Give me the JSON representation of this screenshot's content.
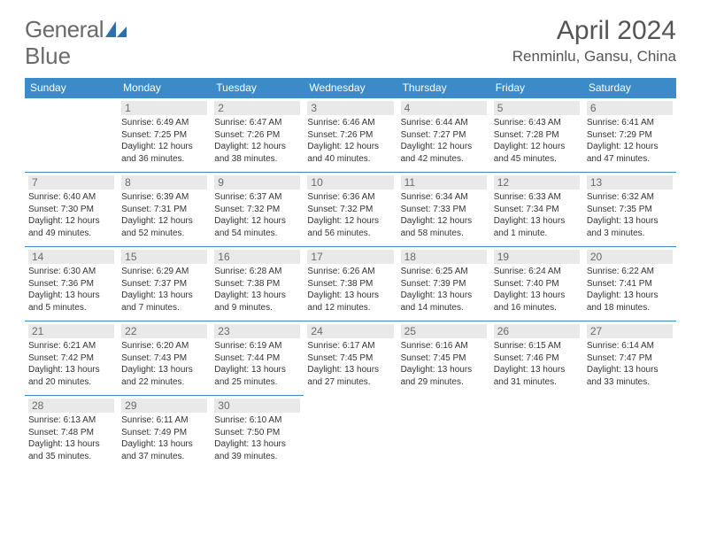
{
  "logo": {
    "word1": "General",
    "word2": "Blue"
  },
  "title": "April 2024",
  "location": "Renminlu, Gansu, China",
  "colors": {
    "header_bg": "#3b8bc9",
    "header_fg": "#ffffff",
    "daynum_bg": "#e9e9e9",
    "daynum_fg": "#6a6a6a",
    "border": "#3b8bc9",
    "text": "#333333",
    "title_fg": "#555555"
  },
  "weekdays": [
    "Sunday",
    "Monday",
    "Tuesday",
    "Wednesday",
    "Thursday",
    "Friday",
    "Saturday"
  ],
  "weeks": [
    [
      {
        "empty": true
      },
      {
        "n": "1",
        "sr": "Sunrise: 6:49 AM",
        "ss": "Sunset: 7:25 PM",
        "d1": "Daylight: 12 hours",
        "d2": "and 36 minutes."
      },
      {
        "n": "2",
        "sr": "Sunrise: 6:47 AM",
        "ss": "Sunset: 7:26 PM",
        "d1": "Daylight: 12 hours",
        "d2": "and 38 minutes."
      },
      {
        "n": "3",
        "sr": "Sunrise: 6:46 AM",
        "ss": "Sunset: 7:26 PM",
        "d1": "Daylight: 12 hours",
        "d2": "and 40 minutes."
      },
      {
        "n": "4",
        "sr": "Sunrise: 6:44 AM",
        "ss": "Sunset: 7:27 PM",
        "d1": "Daylight: 12 hours",
        "d2": "and 42 minutes."
      },
      {
        "n": "5",
        "sr": "Sunrise: 6:43 AM",
        "ss": "Sunset: 7:28 PM",
        "d1": "Daylight: 12 hours",
        "d2": "and 45 minutes."
      },
      {
        "n": "6",
        "sr": "Sunrise: 6:41 AM",
        "ss": "Sunset: 7:29 PM",
        "d1": "Daylight: 12 hours",
        "d2": "and 47 minutes."
      }
    ],
    [
      {
        "n": "7",
        "sr": "Sunrise: 6:40 AM",
        "ss": "Sunset: 7:30 PM",
        "d1": "Daylight: 12 hours",
        "d2": "and 49 minutes."
      },
      {
        "n": "8",
        "sr": "Sunrise: 6:39 AM",
        "ss": "Sunset: 7:31 PM",
        "d1": "Daylight: 12 hours",
        "d2": "and 52 minutes."
      },
      {
        "n": "9",
        "sr": "Sunrise: 6:37 AM",
        "ss": "Sunset: 7:32 PM",
        "d1": "Daylight: 12 hours",
        "d2": "and 54 minutes."
      },
      {
        "n": "10",
        "sr": "Sunrise: 6:36 AM",
        "ss": "Sunset: 7:32 PM",
        "d1": "Daylight: 12 hours",
        "d2": "and 56 minutes."
      },
      {
        "n": "11",
        "sr": "Sunrise: 6:34 AM",
        "ss": "Sunset: 7:33 PM",
        "d1": "Daylight: 12 hours",
        "d2": "and 58 minutes."
      },
      {
        "n": "12",
        "sr": "Sunrise: 6:33 AM",
        "ss": "Sunset: 7:34 PM",
        "d1": "Daylight: 13 hours",
        "d2": "and 1 minute."
      },
      {
        "n": "13",
        "sr": "Sunrise: 6:32 AM",
        "ss": "Sunset: 7:35 PM",
        "d1": "Daylight: 13 hours",
        "d2": "and 3 minutes."
      }
    ],
    [
      {
        "n": "14",
        "sr": "Sunrise: 6:30 AM",
        "ss": "Sunset: 7:36 PM",
        "d1": "Daylight: 13 hours",
        "d2": "and 5 minutes."
      },
      {
        "n": "15",
        "sr": "Sunrise: 6:29 AM",
        "ss": "Sunset: 7:37 PM",
        "d1": "Daylight: 13 hours",
        "d2": "and 7 minutes."
      },
      {
        "n": "16",
        "sr": "Sunrise: 6:28 AM",
        "ss": "Sunset: 7:38 PM",
        "d1": "Daylight: 13 hours",
        "d2": "and 9 minutes."
      },
      {
        "n": "17",
        "sr": "Sunrise: 6:26 AM",
        "ss": "Sunset: 7:38 PM",
        "d1": "Daylight: 13 hours",
        "d2": "and 12 minutes."
      },
      {
        "n": "18",
        "sr": "Sunrise: 6:25 AM",
        "ss": "Sunset: 7:39 PM",
        "d1": "Daylight: 13 hours",
        "d2": "and 14 minutes."
      },
      {
        "n": "19",
        "sr": "Sunrise: 6:24 AM",
        "ss": "Sunset: 7:40 PM",
        "d1": "Daylight: 13 hours",
        "d2": "and 16 minutes."
      },
      {
        "n": "20",
        "sr": "Sunrise: 6:22 AM",
        "ss": "Sunset: 7:41 PM",
        "d1": "Daylight: 13 hours",
        "d2": "and 18 minutes."
      }
    ],
    [
      {
        "n": "21",
        "sr": "Sunrise: 6:21 AM",
        "ss": "Sunset: 7:42 PM",
        "d1": "Daylight: 13 hours",
        "d2": "and 20 minutes."
      },
      {
        "n": "22",
        "sr": "Sunrise: 6:20 AM",
        "ss": "Sunset: 7:43 PM",
        "d1": "Daylight: 13 hours",
        "d2": "and 22 minutes."
      },
      {
        "n": "23",
        "sr": "Sunrise: 6:19 AM",
        "ss": "Sunset: 7:44 PM",
        "d1": "Daylight: 13 hours",
        "d2": "and 25 minutes."
      },
      {
        "n": "24",
        "sr": "Sunrise: 6:17 AM",
        "ss": "Sunset: 7:45 PM",
        "d1": "Daylight: 13 hours",
        "d2": "and 27 minutes."
      },
      {
        "n": "25",
        "sr": "Sunrise: 6:16 AM",
        "ss": "Sunset: 7:45 PM",
        "d1": "Daylight: 13 hours",
        "d2": "and 29 minutes."
      },
      {
        "n": "26",
        "sr": "Sunrise: 6:15 AM",
        "ss": "Sunset: 7:46 PM",
        "d1": "Daylight: 13 hours",
        "d2": "and 31 minutes."
      },
      {
        "n": "27",
        "sr": "Sunrise: 6:14 AM",
        "ss": "Sunset: 7:47 PM",
        "d1": "Daylight: 13 hours",
        "d2": "and 33 minutes."
      }
    ],
    [
      {
        "n": "28",
        "sr": "Sunrise: 6:13 AM",
        "ss": "Sunset: 7:48 PM",
        "d1": "Daylight: 13 hours",
        "d2": "and 35 minutes."
      },
      {
        "n": "29",
        "sr": "Sunrise: 6:11 AM",
        "ss": "Sunset: 7:49 PM",
        "d1": "Daylight: 13 hours",
        "d2": "and 37 minutes."
      },
      {
        "n": "30",
        "sr": "Sunrise: 6:10 AM",
        "ss": "Sunset: 7:50 PM",
        "d1": "Daylight: 13 hours",
        "d2": "and 39 minutes."
      },
      {
        "empty": true
      },
      {
        "empty": true
      },
      {
        "empty": true
      },
      {
        "empty": true
      }
    ]
  ]
}
